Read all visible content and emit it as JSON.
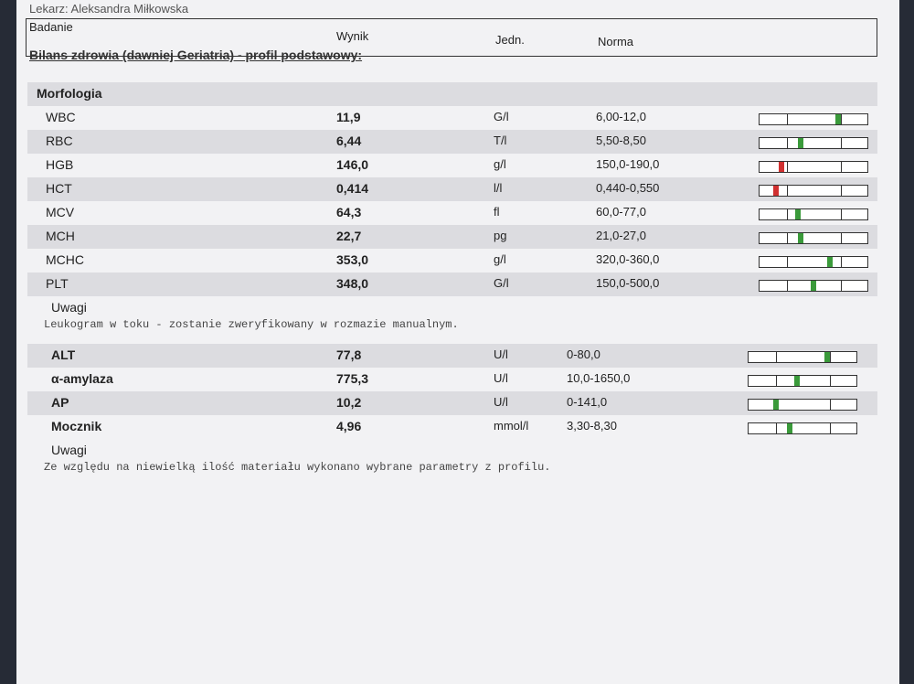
{
  "doctor": "Lekarz: Aleksandra Miłkowska",
  "header": {
    "test": "Badanie",
    "result": "Wynik",
    "unit": "Jedn.",
    "norm": "Norma"
  },
  "profile_title": "Bilans zdrowia (dawniej Geriatria) - profil podstawowy:",
  "groups": [
    {
      "title": "Morfologia",
      "rows": [
        [
          "WBC",
          "11,9",
          "G/l",
          "6,00-12,0"
        ],
        [
          "RBC",
          "6,44",
          "T/l",
          "5,50-8,50"
        ],
        [
          "HGB",
          "146,0",
          "g/l",
          "150,0-190,0"
        ],
        [
          "HCT",
          "0,414",
          "l/l",
          "0,440-0,550"
        ],
        [
          "MCV",
          "64,3",
          "fl",
          "60,0-77,0"
        ],
        [
          "MCH",
          "22,7",
          "pg",
          "21,0-27,0"
        ],
        [
          "MCHC",
          "353,0",
          "g/l",
          "320,0-360,0"
        ],
        [
          "PLT",
          "348,0",
          "G/l",
          "150,0-500,0"
        ]
      ],
      "notes_label": "Uwagi",
      "note": "Leukogram w toku - zostanie zweryfikowany w rozmazie manualnym."
    },
    {
      "rows": [
        [
          "ALT",
          "77,8",
          "U/l",
          "0-80,0"
        ],
        [
          "α-amylaza",
          "775,3",
          "U/l",
          "10,0-1650,0"
        ],
        [
          "AP",
          "10,2",
          "U/l",
          "0-141,0"
        ],
        [
          "Mocznik",
          "4,96",
          "mmol/l",
          "3,30-8,30"
        ]
      ],
      "notes_label": "Uwagi",
      "note": "Ze względu na niewielką ilość materiału wykonano wybrane parametry z profilu."
    }
  ]
}
